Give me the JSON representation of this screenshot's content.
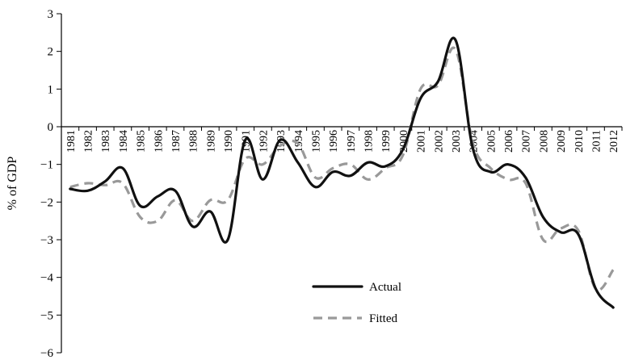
{
  "chart_data": {
    "type": "line",
    "title": "",
    "xlabel": "",
    "ylabel": "% of GDP",
    "ylim": [
      -6,
      3
    ],
    "yticks": [
      "3",
      "2",
      "1",
      "0",
      "−1",
      "−2",
      "−3",
      "−4",
      "−5",
      "−6"
    ],
    "grid": false,
    "legend_position": "lower-center",
    "categories": [
      "1981",
      "1982",
      "1983",
      "1984",
      "1985",
      "1986",
      "1987",
      "1988",
      "1989",
      "1990",
      "1991",
      "1992",
      "1993",
      "1994",
      "1995",
      "1996",
      "1997",
      "1998",
      "1999",
      "2000",
      "2001",
      "2002",
      "2003",
      "2004",
      "2005",
      "2006",
      "2007",
      "2008",
      "2009",
      "2010",
      "2011",
      "2012"
    ],
    "series": [
      {
        "name": "Actual",
        "color": "#111111",
        "values": [
          -1.65,
          -1.7,
          -1.45,
          -1.1,
          -2.1,
          -1.85,
          -1.7,
          -2.65,
          -2.25,
          -3.0,
          -0.35,
          -1.4,
          -0.35,
          -0.95,
          -1.6,
          -1.2,
          -1.3,
          -0.95,
          -1.05,
          -0.6,
          0.75,
          1.2,
          2.3,
          -0.6,
          -1.2,
          -1.0,
          -1.35,
          -2.4,
          -2.8,
          -2.85,
          -4.3,
          -4.8
        ]
      },
      {
        "name": "Fitted",
        "color": "#999999",
        "values": [
          -1.6,
          -1.5,
          -1.55,
          -1.5,
          -2.4,
          -2.5,
          -1.95,
          -2.5,
          -1.95,
          -1.95,
          -0.85,
          -1.0,
          -0.5,
          -0.45,
          -1.35,
          -1.1,
          -1.0,
          -1.4,
          -1.1,
          -0.75,
          1.0,
          1.1,
          2.05,
          -0.45,
          -1.1,
          -1.4,
          -1.5,
          -3.0,
          -2.7,
          -2.75,
          -4.3,
          -3.8
        ]
      }
    ]
  }
}
